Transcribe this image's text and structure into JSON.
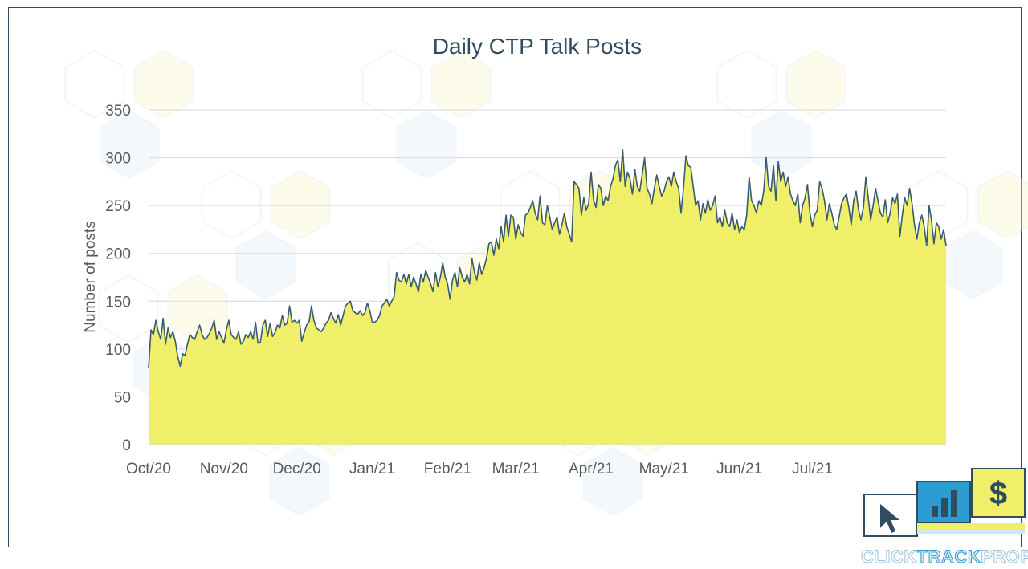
{
  "colors": {
    "area_fill": "#f0ef6a",
    "line": "#3a5a70",
    "grid": "#d9d9d9",
    "title": "#2f4d5e",
    "text": "#595959",
    "brand_blue": "#2d9cd2",
    "brand_yellow": "#f0ef6a",
    "brand_dark": "#2f4d5e"
  },
  "brand": {
    "part1": "CLICK",
    "part2": "TRACK",
    "part3": "PROFIT",
    "icons": [
      "cursor-icon",
      "bar-chart-icon",
      "dollar-icon"
    ],
    "dollar_glyph": "$"
  },
  "chart_data": {
    "type": "area",
    "title": "Daily CTP Talk Posts",
    "xlabel": "",
    "ylabel": "Number of posts",
    "ylim": [
      0,
      350
    ],
    "yticks": [
      0,
      50,
      100,
      150,
      200,
      250,
      300,
      350
    ],
    "grid": true,
    "legend": "none",
    "x_tick_labels": [
      "Oct/20",
      "Nov/20",
      "Dec/20",
      "Jan/21",
      "Feb/21",
      "Mar/21",
      "Apr/21",
      "May/21",
      "Jun/21",
      "Jul/21"
    ],
    "x_tick_day_index": [
      0,
      31,
      61,
      92,
      123,
      151,
      182,
      212,
      243,
      273
    ],
    "start_date": "Oct/20",
    "values": [
      80,
      120,
      115,
      130,
      118,
      110,
      132,
      105,
      122,
      112,
      118,
      108,
      92,
      82,
      95,
      93,
      105,
      115,
      112,
      110,
      118,
      125,
      115,
      110,
      112,
      116,
      122,
      130,
      110,
      118,
      112,
      106,
      120,
      130,
      115,
      112,
      110,
      118,
      105,
      108,
      115,
      112,
      118,
      110,
      128,
      106,
      107,
      125,
      130,
      113,
      127,
      113,
      117,
      125,
      122,
      135,
      125,
      127,
      145,
      128,
      130,
      127,
      130,
      108,
      117,
      125,
      128,
      145,
      130,
      122,
      120,
      118,
      122,
      127,
      130,
      138,
      132,
      127,
      136,
      125,
      135,
      145,
      148,
      150,
      140,
      138,
      136,
      140,
      135,
      138,
      148,
      140,
      128,
      128,
      130,
      135,
      145,
      148,
      152,
      145,
      150,
      155,
      180,
      172,
      170,
      178,
      168,
      178,
      165,
      175,
      168,
      160,
      178,
      170,
      182,
      175,
      168,
      160,
      180,
      165,
      175,
      190,
      175,
      168,
      152,
      172,
      180,
      165,
      185,
      175,
      170,
      178,
      168,
      195,
      180,
      172,
      190,
      178,
      185,
      195,
      210,
      212,
      198,
      215,
      205,
      228,
      212,
      240,
      218,
      240,
      238,
      215,
      230,
      222,
      218,
      240,
      242,
      248,
      255,
      242,
      235,
      260,
      232,
      230,
      250,
      238,
      225,
      232,
      238,
      220,
      230,
      242,
      228,
      220,
      212,
      275,
      272,
      268,
      240,
      258,
      245,
      252,
      285,
      256,
      248,
      272,
      268,
      250,
      260,
      255,
      270,
      278,
      292,
      298,
      275,
      308,
      270,
      285,
      278,
      262,
      288,
      270,
      265,
      282,
      300,
      268,
      262,
      252,
      268,
      282,
      270,
      260,
      265,
      275,
      280,
      270,
      285,
      275,
      268,
      242,
      268,
      302,
      292,
      290,
      270,
      250,
      255,
      235,
      252,
      242,
      256,
      245,
      250,
      260,
      232,
      238,
      228,
      245,
      232,
      228,
      242,
      225,
      235,
      222,
      228,
      225,
      240,
      280,
      255,
      250,
      242,
      255,
      250,
      265,
      300,
      270,
      265,
      292,
      255,
      296,
      275,
      285,
      270,
      280,
      262,
      255,
      250,
      262,
      232,
      250,
      258,
      272,
      242,
      228,
      240,
      245,
      275,
      268,
      255,
      235,
      252,
      242,
      230,
      225,
      238,
      252,
      258,
      262,
      248,
      230,
      255,
      265,
      245,
      235,
      248,
      280,
      258,
      235,
      250,
      268,
      255,
      242,
      238,
      256,
      232,
      242,
      258,
      252,
      262,
      218,
      240,
      258,
      250,
      268,
      252,
      230,
      215,
      232,
      240,
      228,
      208,
      250,
      235,
      210,
      232,
      228,
      215,
      225,
      208
    ]
  }
}
